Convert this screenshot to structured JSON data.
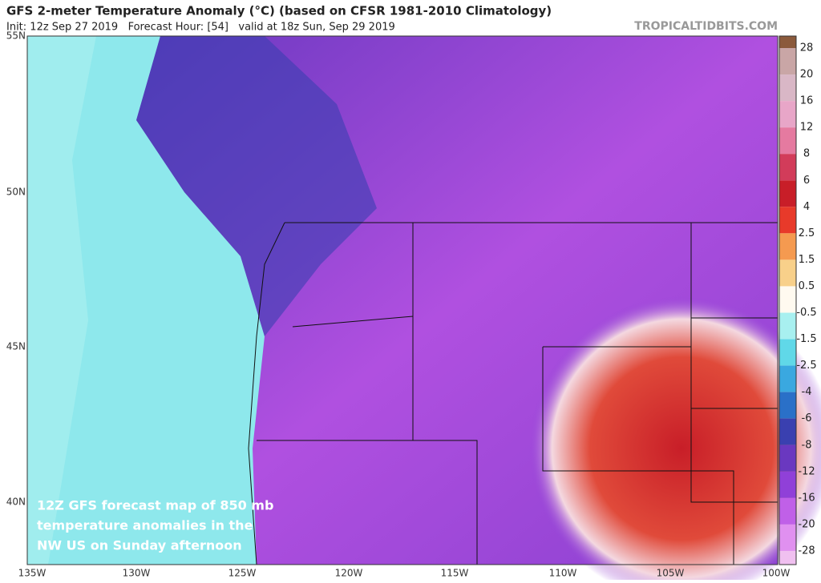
{
  "header": {
    "title": "GFS 2-meter Temperature Anomaly (°C) (based on CFSR 1981-2010 Climatology)",
    "subtitle": "Init: 12z Sep 27 2019   Forecast Hour: [54]   valid at 18z Sun, Sep 29 2019",
    "credit": "TROPICALTIDBITS.COM"
  },
  "map": {
    "lat_labels": [
      "55N",
      "50N",
      "45N",
      "40N"
    ],
    "lon_labels": [
      "135W",
      "130W",
      "125W",
      "120W",
      "115W",
      "110W",
      "105W",
      "100W"
    ],
    "annotation": [
      "12Z GFS forecast map of 850 mb",
      "temperature anomalies in the",
      "NW US on Sunday afternoon"
    ]
  },
  "colorbar": {
    "labels": [
      28,
      20,
      16,
      12,
      8,
      6,
      4,
      2.5,
      1.5,
      0.5,
      -0.5,
      -1.5,
      -2.5,
      -4,
      -6,
      -8,
      -12,
      -16,
      -20,
      -28
    ],
    "colors": [
      "#8b5a3c",
      "#c9a6a6",
      "#d9b7c6",
      "#e8a6c8",
      "#e57aa0",
      "#d23c5a",
      "#c81e28",
      "#e83a2a",
      "#f59a50",
      "#f8d08a",
      "#fffaf0",
      "#a8f0f0",
      "#60d8e8",
      "#3aa8e0",
      "#2a70c8",
      "#3a40b0",
      "#6a38c0",
      "#9040d8",
      "#c060e8",
      "#e090f0",
      "#f0c0f0"
    ]
  }
}
